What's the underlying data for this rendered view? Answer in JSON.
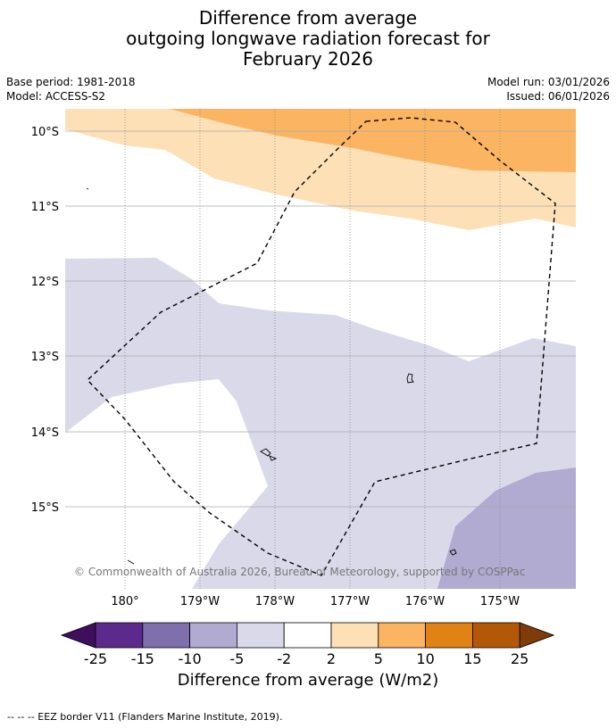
{
  "header": {
    "title_line1": "Difference from average",
    "title_line2": "outgoing longwave radiation forecast for",
    "title_line3": "February 2026",
    "base_period": "Base period: 1981-2018",
    "model": "Model: ACCESS-S2",
    "model_run": "Model run: 03/01/2026",
    "issued": "Issued: 06/01/2026"
  },
  "map": {
    "lat_labels": [
      "10°S",
      "11°S",
      "12°S",
      "13°S",
      "14°S",
      "15°S"
    ],
    "lon_labels": [
      "180°",
      "179°W",
      "178°W",
      "177°W",
      "176°W",
      "175°W"
    ],
    "copyright": "© Commonwealth of Australia 2026, Bureau of Meteorology, supported by COSPPac"
  },
  "colorbar": {
    "ticks": [
      "-25",
      "-15",
      "-10",
      "-5",
      "-2",
      "2",
      "5",
      "10",
      "15",
      "25"
    ],
    "colors": [
      "#3f0f5e",
      "#5c2a8c",
      "#7f6fac",
      "#b1aad1",
      "#d9d9ea",
      "#ffffff",
      "#fde0b6",
      "#fbb462",
      "#e08214",
      "#b35806",
      "#7f3b08"
    ],
    "title": "Difference from average (W/m2)"
  },
  "legend": {
    "eez": "--  --  -- EEZ border V11 (Flanders Marine Institute, 2019)."
  }
}
